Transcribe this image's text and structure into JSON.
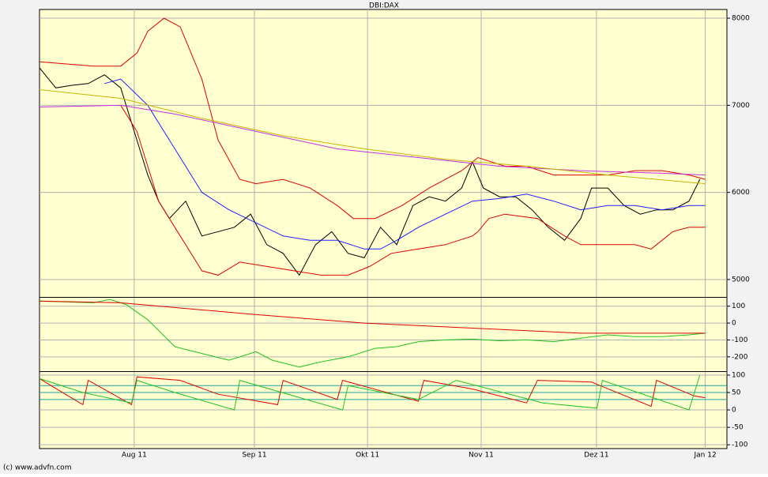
{
  "title": "DBI:DAX",
  "footer": "(c) www.advfn.com",
  "chart_data": [
    {
      "type": "line",
      "xlim": [
        0,
        127
      ],
      "xticks": [
        {
          "value": 17.5,
          "label": "Aug 11"
        },
        {
          "value": 39.7,
          "label": "Sep 11"
        },
        {
          "value": 60.6,
          "label": "Okt 11"
        },
        {
          "value": 81.6,
          "label": "Nov 11"
        },
        {
          "value": 102.9,
          "label": "Dez 11"
        },
        {
          "value": 123,
          "label": "Jan 12"
        }
      ],
      "ylim": [
        4800,
        8100
      ],
      "yticks": [
        5000,
        6000,
        7000,
        8000
      ],
      "series": [
        {
          "color": "#000000",
          "x": [
            0,
            3,
            6,
            9,
            12,
            15,
            18,
            20,
            22,
            24,
            27,
            30,
            33,
            36,
            39,
            42,
            45,
            48,
            51,
            54,
            57,
            60,
            63,
            66,
            69,
            72,
            75,
            78,
            80,
            82,
            85,
            88,
            91,
            94,
            97,
            100,
            102,
            105,
            108,
            111,
            114,
            117,
            120,
            122
          ],
          "values": [
            7430,
            7200,
            7230,
            7250,
            7350,
            7200,
            6600,
            6200,
            5900,
            5700,
            5900,
            5500,
            5550,
            5600,
            5750,
            5400,
            5300,
            5050,
            5400,
            5550,
            5300,
            5250,
            5600,
            5400,
            5850,
            5950,
            5900,
            6050,
            6350,
            6050,
            5950,
            5950,
            5800,
            5600,
            5450,
            5700,
            6050,
            6050,
            5850,
            5750,
            5800,
            5800,
            5900,
            6150
          ]
        },
        {
          "color": "#2020ff",
          "x": [
            12,
            15,
            20,
            25,
            30,
            35,
            40,
            45,
            50,
            55,
            60,
            63,
            66,
            70,
            75,
            80,
            85,
            90,
            95,
            100,
            105,
            110,
            115,
            120,
            123
          ],
          "values": [
            7250,
            7300,
            7000,
            6500,
            6000,
            5800,
            5650,
            5500,
            5450,
            5450,
            5350,
            5350,
            5450,
            5600,
            5750,
            5900,
            5930,
            5980,
            5900,
            5800,
            5850,
            5850,
            5800,
            5850,
            5850
          ]
        },
        {
          "color": "#e00000",
          "x": [
            0,
            10,
            15,
            18,
            20,
            23,
            26,
            30,
            33,
            37,
            40,
            45,
            50,
            55,
            58,
            62,
            67,
            72,
            78,
            81,
            86,
            90,
            95,
            100,
            105,
            110,
            115,
            120,
            123
          ],
          "values": [
            7500,
            7450,
            7450,
            7600,
            7850,
            8000,
            7900,
            7300,
            6600,
            6150,
            6100,
            6150,
            6050,
            5850,
            5700,
            5700,
            5850,
            6050,
            6250,
            6400,
            6300,
            6300,
            6200,
            6200,
            6200,
            6250,
            6250,
            6200,
            6150
          ]
        },
        {
          "color": "#e00000",
          "x": [
            15,
            18,
            22,
            26,
            30,
            33,
            37,
            42,
            47,
            52,
            57,
            61,
            65,
            70,
            75,
            80,
            81,
            83,
            86,
            92,
            97,
            100,
            105,
            110,
            113,
            117,
            120,
            123
          ],
          "values": [
            7000,
            6700,
            5900,
            5500,
            5100,
            5050,
            5200,
            5150,
            5100,
            5050,
            5050,
            5150,
            5300,
            5350,
            5400,
            5500,
            5550,
            5700,
            5750,
            5700,
            5500,
            5400,
            5400,
            5400,
            5350,
            5550,
            5600,
            5600
          ]
        },
        {
          "color": "#c030e0",
          "x": [
            0,
            15,
            25,
            40,
            55,
            70,
            85,
            100,
            115,
            123
          ],
          "values": [
            6980,
            7000,
            6900,
            6700,
            6500,
            6400,
            6300,
            6250,
            6220,
            6200
          ]
        },
        {
          "color": "#c8b400",
          "x": [
            0,
            15,
            30,
            45,
            60,
            75,
            90,
            105,
            123
          ],
          "values": [
            7180,
            7080,
            6850,
            6650,
            6500,
            6380,
            6300,
            6200,
            6100
          ]
        }
      ]
    },
    {
      "type": "line",
      "ylim": [
        -285,
        150
      ],
      "yticks": [
        100,
        0,
        -100,
        -200
      ],
      "series": [
        {
          "color": "#20c020",
          "x": [
            0,
            10,
            13,
            16,
            20,
            25,
            30,
            35,
            40,
            43,
            48,
            52,
            57,
            62,
            66,
            70,
            75,
            80,
            85,
            90,
            95,
            100,
            105,
            110,
            115,
            120,
            123
          ],
          "values": [
            130,
            120,
            140,
            110,
            20,
            -140,
            -180,
            -220,
            -170,
            -220,
            -260,
            -230,
            -200,
            -150,
            -140,
            -110,
            -100,
            -95,
            -105,
            -100,
            -110,
            -90,
            -70,
            -80,
            -80,
            -70,
            -60
          ]
        },
        {
          "color": "#e00000",
          "x": [
            0,
            15,
            40,
            60,
            80,
            100,
            123
          ],
          "values": [
            130,
            120,
            50,
            0,
            -30,
            -60,
            -60
          ]
        }
      ]
    },
    {
      "type": "line",
      "ylim": [
        -111,
        109
      ],
      "yticks": [
        100,
        50,
        0,
        -50,
        -100
      ],
      "levels": [
        70,
        50,
        30
      ],
      "series": [
        {
          "color": "#e00000",
          "x": [
            0,
            8,
            9,
            17,
            18,
            26,
            33,
            44,
            45,
            55,
            56,
            70,
            71,
            80,
            90,
            92,
            102,
            113,
            114,
            121,
            123
          ],
          "values": [
            90,
            15,
            85,
            15,
            95,
            85,
            45,
            15,
            85,
            30,
            85,
            25,
            85,
            60,
            20,
            85,
            80,
            10,
            85,
            40,
            35
          ]
        },
        {
          "color": "#20c020",
          "x": [
            0,
            8,
            17,
            18,
            25,
            36,
            37,
            47,
            56,
            57,
            70,
            77,
            93,
            103,
            104,
            120,
            122
          ],
          "values": [
            90,
            50,
            20,
            85,
            50,
            0,
            85,
            40,
            0,
            70,
            30,
            85,
            20,
            5,
            85,
            0,
            100
          ]
        }
      ]
    }
  ]
}
